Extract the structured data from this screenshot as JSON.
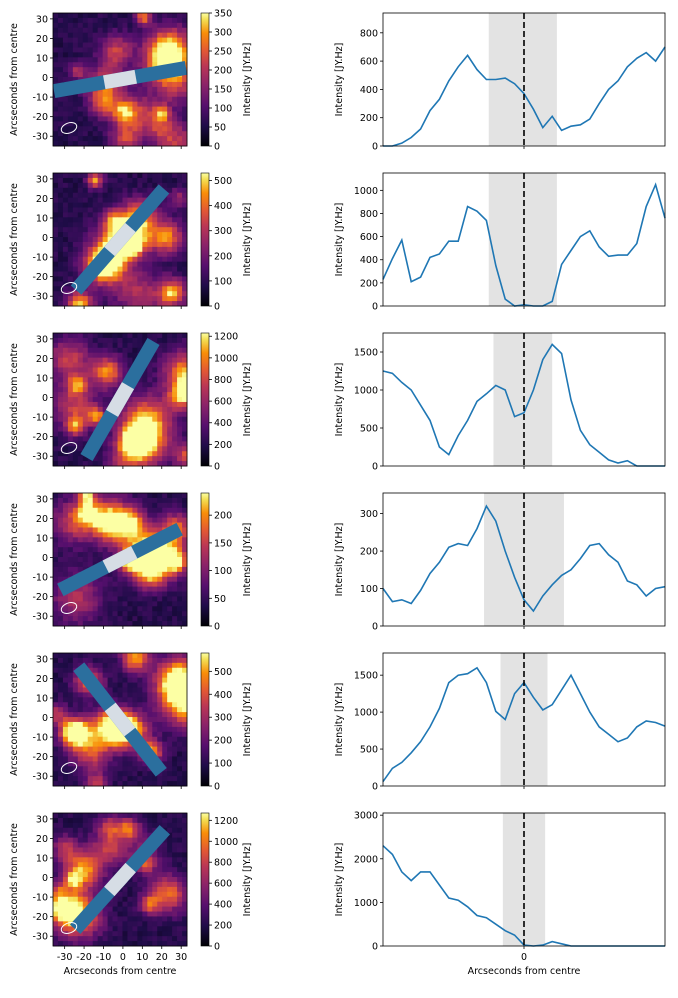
{
  "figure": {
    "map_ylabel": "Arcseconds from centre",
    "map_xlabel": "Arcseconds from centre",
    "profile_xlabel": "Arcseconds from centre",
    "colorbar_label": "Intensity [JY.Hz]",
    "colormap": "inferno",
    "slit_color": "#2b6f9e",
    "slit_center_color": "#d6dde5",
    "line_color": "#1f77b4",
    "shade_color": "#e3e3e3",
    "marker_color": "#000000"
  },
  "chart_data": [
    {
      "type": "heatmap",
      "panel": 1,
      "ylabel": "Arcseconds from centre",
      "yticks": [
        "30",
        "20",
        "10",
        "0",
        "-10",
        "-20",
        "-30"
      ],
      "colorbar": {
        "ticks": [
          "350",
          "300",
          "250",
          "200",
          "150",
          "100",
          "50",
          "0"
        ],
        "max": 350
      },
      "slit_angle_deg": -10
    },
    {
      "type": "line",
      "panel": 1,
      "ylabel": "Intensity [JY.Hz]",
      "yticks": [
        "800",
        "600",
        "400",
        "200",
        "0"
      ],
      "ylim": [
        0,
        940
      ],
      "xlim": [
        -60,
        60
      ],
      "shade": [
        -15,
        14
      ],
      "x": [
        -60,
        -56,
        -52,
        -48,
        -44,
        -40,
        -36,
        -32,
        -28,
        -24,
        -20,
        -16,
        -12,
        -8,
        -4,
        0,
        4,
        8,
        12,
        16,
        20,
        24,
        28,
        32,
        36,
        40,
        44,
        48,
        52,
        56,
        60
      ],
      "y": [
        0,
        0,
        20,
        60,
        120,
        250,
        330,
        460,
        560,
        640,
        540,
        470,
        470,
        480,
        440,
        370,
        260,
        130,
        210,
        110,
        140,
        150,
        190,
        300,
        400,
        460,
        560,
        620,
        660,
        600,
        700
      ]
    },
    {
      "type": "heatmap",
      "panel": 2,
      "ylabel": "Arcseconds from centre",
      "yticks": [
        "30",
        "20",
        "10",
        "0",
        "-10",
        "-20",
        "-30"
      ],
      "colorbar": {
        "ticks": [
          "500",
          "400",
          "300",
          "200",
          "100",
          "0"
        ],
        "max": 530
      },
      "slit_angle_deg": -49
    },
    {
      "type": "line",
      "panel": 2,
      "ylabel": "Intensity [JY.Hz]",
      "yticks": [
        "1000",
        "800",
        "600",
        "400",
        "200",
        "0"
      ],
      "ylim": [
        0,
        1150
      ],
      "xlim": [
        -60,
        60
      ],
      "shade": [
        -15,
        14
      ],
      "x": [
        -60,
        -56,
        -52,
        -48,
        -44,
        -40,
        -36,
        -32,
        -28,
        -24,
        -20,
        -16,
        -12,
        -8,
        -4,
        0,
        4,
        8,
        12,
        16,
        20,
        24,
        28,
        32,
        36,
        40,
        44,
        48,
        52,
        56,
        60
      ],
      "y": [
        230,
        410,
        570,
        210,
        250,
        420,
        450,
        560,
        560,
        860,
        820,
        740,
        350,
        60,
        0,
        10,
        0,
        0,
        40,
        360,
        480,
        600,
        650,
        510,
        430,
        440,
        440,
        540,
        860,
        1050,
        760
      ]
    },
    {
      "type": "heatmap",
      "panel": 3,
      "ylabel": "Arcseconds from centre",
      "yticks": [
        "30",
        "20",
        "10",
        "0",
        "-10",
        "-20",
        "-30"
      ],
      "colorbar": {
        "ticks": [
          "1200",
          "1000",
          "800",
          "600",
          "400",
          "200",
          "0"
        ],
        "max": 1230
      },
      "slit_angle_deg": -60
    },
    {
      "type": "line",
      "panel": 3,
      "ylabel": "Intensity [JY.Hz]",
      "yticks": [
        "1500",
        "1000",
        "500",
        "0"
      ],
      "ylim": [
        0,
        1750
      ],
      "xlim": [
        -60,
        60
      ],
      "shade": [
        -13,
        12
      ],
      "x": [
        -60,
        -56,
        -52,
        -48,
        -44,
        -40,
        -36,
        -32,
        -28,
        -24,
        -20,
        -16,
        -12,
        -8,
        -4,
        0,
        4,
        8,
        12,
        16,
        20,
        24,
        28,
        32,
        36,
        40,
        44,
        48,
        52,
        56,
        60
      ],
      "y": [
        1250,
        1220,
        1100,
        1000,
        800,
        600,
        250,
        150,
        400,
        600,
        850,
        950,
        1060,
        1000,
        650,
        700,
        1000,
        1400,
        1600,
        1480,
        870,
        470,
        280,
        180,
        80,
        40,
        70,
        0,
        0,
        0,
        0
      ]
    },
    {
      "type": "heatmap",
      "panel": 4,
      "ylabel": "Arcseconds from centre",
      "yticks": [
        "30",
        "20",
        "10",
        "0",
        "-10",
        "-20",
        "-30"
      ],
      "colorbar": {
        "ticks": [
          "200",
          "150",
          "100",
          "50",
          "0"
        ],
        "max": 240
      },
      "slit_angle_deg": -27
    },
    {
      "type": "line",
      "panel": 4,
      "ylabel": "Intensity [JY.Hz]",
      "yticks": [
        "300",
        "200",
        "100",
        "0"
      ],
      "ylim": [
        0,
        355
      ],
      "xlim": [
        -60,
        60
      ],
      "shade": [
        -17,
        17
      ],
      "x": [
        -60,
        -56,
        -52,
        -48,
        -44,
        -40,
        -36,
        -32,
        -28,
        -24,
        -20,
        -16,
        -12,
        -8,
        -4,
        0,
        4,
        8,
        12,
        16,
        20,
        24,
        28,
        32,
        36,
        40,
        44,
        48,
        52,
        56,
        60
      ],
      "y": [
        100,
        65,
        70,
        60,
        95,
        140,
        170,
        210,
        220,
        215,
        260,
        320,
        280,
        200,
        130,
        70,
        40,
        80,
        110,
        135,
        150,
        180,
        215,
        220,
        190,
        170,
        120,
        110,
        80,
        100,
        105
      ]
    },
    {
      "type": "heatmap",
      "panel": 5,
      "ylabel": "Arcseconds from centre",
      "yticks": [
        "30",
        "20",
        "10",
        "0",
        "-10",
        "-20",
        "-30"
      ],
      "colorbar": {
        "ticks": [
          "500",
          "400",
          "300",
          "200",
          "100",
          "0"
        ],
        "max": 580
      },
      "slit_angle_deg": 52
    },
    {
      "type": "line",
      "panel": 5,
      "ylabel": "Intensity [JY.Hz]",
      "yticks": [
        "1500",
        "1000",
        "500",
        "0"
      ],
      "ylim": [
        0,
        1800
      ],
      "xlim": [
        -60,
        60
      ],
      "shade": [
        -10,
        10
      ],
      "x": [
        -60,
        -56,
        -52,
        -48,
        -44,
        -40,
        -36,
        -32,
        -28,
        -24,
        -20,
        -16,
        -12,
        -8,
        -4,
        0,
        4,
        8,
        12,
        16,
        20,
        24,
        28,
        32,
        36,
        40,
        44,
        48,
        52,
        56,
        60
      ],
      "y": [
        60,
        240,
        320,
        450,
        600,
        800,
        1050,
        1400,
        1500,
        1520,
        1600,
        1400,
        1010,
        900,
        1250,
        1400,
        1200,
        1030,
        1100,
        1300,
        1500,
        1250,
        1000,
        800,
        700,
        600,
        650,
        800,
        880,
        860,
        810
      ]
    },
    {
      "type": "heatmap",
      "panel": 6,
      "ylabel": "Arcseconds from centre",
      "xlabel": "Arcseconds from centre",
      "yticks": [
        "30",
        "20",
        "10",
        "0",
        "-10",
        "-20",
        "-30"
      ],
      "xticks": [
        "-30",
        "-20",
        "-10",
        "0",
        "10",
        "20",
        "30"
      ],
      "colorbar": {
        "ticks": [
          "1200",
          "1000",
          "800",
          "600",
          "400",
          "200",
          "0"
        ],
        "max": 1270
      },
      "slit_angle_deg": -48
    },
    {
      "type": "line",
      "panel": 6,
      "ylabel": "Intensity [JY.Hz]",
      "xlabel": "Arcseconds from centre",
      "yticks": [
        "3000",
        "2000",
        "1000",
        "0"
      ],
      "xticks": [
        "0"
      ],
      "ylim": [
        0,
        3050
      ],
      "xlim": [
        -60,
        60
      ],
      "shade": [
        -9,
        9
      ],
      "x": [
        -60,
        -56,
        -52,
        -48,
        -44,
        -40,
        -36,
        -32,
        -28,
        -24,
        -20,
        -16,
        -12,
        -8,
        -4,
        0,
        4,
        8,
        12,
        16,
        20,
        24,
        28,
        32,
        36,
        40,
        44,
        48,
        52,
        56,
        60
      ],
      "y": [
        2300,
        2100,
        1700,
        1500,
        1700,
        1700,
        1400,
        1100,
        1050,
        900,
        700,
        650,
        500,
        350,
        250,
        20,
        0,
        20,
        100,
        50,
        0,
        0,
        0,
        0,
        0,
        0,
        0,
        0,
        0,
        0,
        0
      ]
    }
  ]
}
